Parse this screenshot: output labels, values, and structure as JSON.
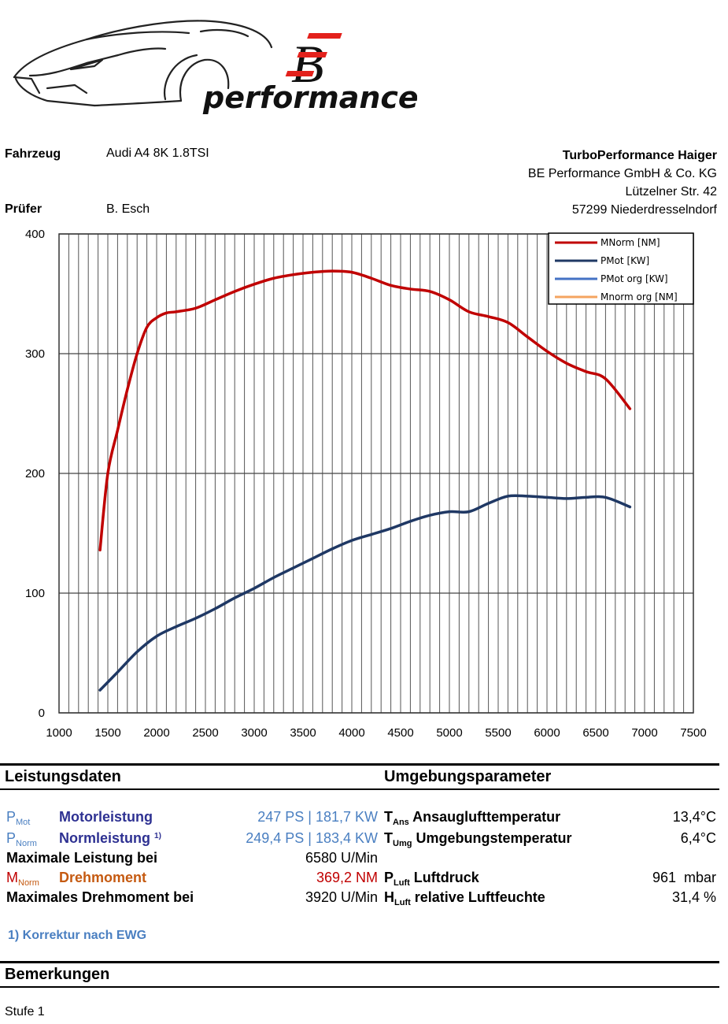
{
  "logo": {
    "monogram": "BE",
    "word": "performance"
  },
  "header": {
    "vehicle_label": "Fahrzeug",
    "vehicle_value": "Audi A4 8K 1.8TSI",
    "tester_label": "Prüfer",
    "tester_value": "B. Esch",
    "company": [
      "TurboPerformance Haiger",
      "BE Performance GmbH & Co. KG",
      "Lützelner Str. 42",
      "57299 Niederdresselndorf"
    ]
  },
  "colors": {
    "mnorm": "#c00000",
    "pmot": "#1f3864",
    "pmot_org": "#4472c4",
    "mnorm_org": "#f4a460"
  },
  "chart_data": {
    "type": "line",
    "x_ticks": [
      "1000",
      "1500",
      "2000",
      "2500",
      "3000",
      "3500",
      "4000",
      "4500",
      "5000",
      "5500",
      "6000",
      "6500",
      "7000",
      "7500"
    ],
    "y_ticks": [
      "0",
      "100",
      "200",
      "300",
      "400"
    ],
    "xlim": [
      1000,
      7500
    ],
    "ylim": [
      0,
      400
    ],
    "grid": true,
    "legend_position": "top-right",
    "series": [
      {
        "name": "MNorm [NM]",
        "color": "#c00000",
        "x": [
          1420,
          1500,
          1600,
          1700,
          1800,
          1900,
          2000,
          2100,
          2200,
          2400,
          2600,
          2800,
          3000,
          3200,
          3400,
          3600,
          3800,
          4000,
          4200,
          4400,
          4600,
          4800,
          5000,
          5200,
          5400,
          5600,
          5800,
          6000,
          6200,
          6400,
          6600,
          6850
        ],
        "y": [
          136,
          200,
          236,
          270,
          300,
          322,
          330,
          334,
          335,
          338,
          345,
          352,
          358,
          363,
          366,
          368,
          369,
          368,
          363,
          357,
          354,
          352,
          345,
          335,
          331,
          326,
          314,
          302,
          292,
          285,
          279,
          254
        ]
      },
      {
        "name": "PMot [KW]",
        "color": "#1f3864",
        "x": [
          1420,
          1600,
          1800,
          2000,
          2200,
          2400,
          2600,
          2800,
          3000,
          3200,
          3400,
          3600,
          3800,
          4000,
          4200,
          4400,
          4600,
          4800,
          5000,
          5200,
          5400,
          5600,
          5800,
          6000,
          6200,
          6400,
          6600,
          6850
        ],
        "y": [
          19,
          34,
          51,
          64,
          72,
          79,
          87,
          96,
          104,
          113,
          121,
          129,
          137,
          144,
          149,
          154,
          160,
          165,
          168,
          168,
          175,
          181,
          181,
          180,
          179,
          180,
          180,
          172
        ]
      },
      {
        "name": "PMot org [KW]",
        "color": "#4472c4",
        "x": [],
        "y": []
      },
      {
        "name": "Mnorm org [NM]",
        "color": "#f4a460",
        "x": [],
        "y": []
      }
    ]
  },
  "perf": {
    "title": "Leistungsdaten",
    "pmot_letter": "P",
    "pmot_sub": "Mot",
    "pmot_label": "Motorleistung",
    "pmot_value": "247 PS | 181,7 KW",
    "pnorm_letter": "P",
    "pnorm_sub": "Norm",
    "pnorm_label": "Normleistung",
    "pnorm_sup": "1)",
    "pnorm_value": "249,4 PS | 183,4 KW",
    "maxp_label": "Maximale Leistung bei",
    "maxp_value": "6580 U/Min",
    "mnorm_letter": "M",
    "mnorm_sub": "Norm",
    "mnorm_label": "Drehmoment",
    "mnorm_value": "369,2 NM",
    "maxm_label": "Maximales Drehmoment bei",
    "maxm_value": "3920 U/Min",
    "footnote": "1) Korrektur nach EWG"
  },
  "env": {
    "title": "Umgebungsparameter",
    "tans_letter": "T",
    "tans_sub": "Ans",
    "tans_label": "Ansauglufttemperatur",
    "tans_value": "13,4°C",
    "tumg_letter": "T",
    "tumg_sub": "Umg",
    "tumg_label": "Umgebungstemperatur",
    "tumg_value": "6,4°C",
    "pluft_letter": "P",
    "pluft_sub": "Luft",
    "pluft_label": "Luftdruck",
    "pluft_value": "961  mbar",
    "hluft_letter": "H",
    "hluft_sub": "Luft",
    "hluft_label": "relative Luftfeuchte",
    "hluft_value": "31,4 %"
  },
  "remarks": {
    "title": "Bemerkungen",
    "text": "Stufe 1"
  }
}
